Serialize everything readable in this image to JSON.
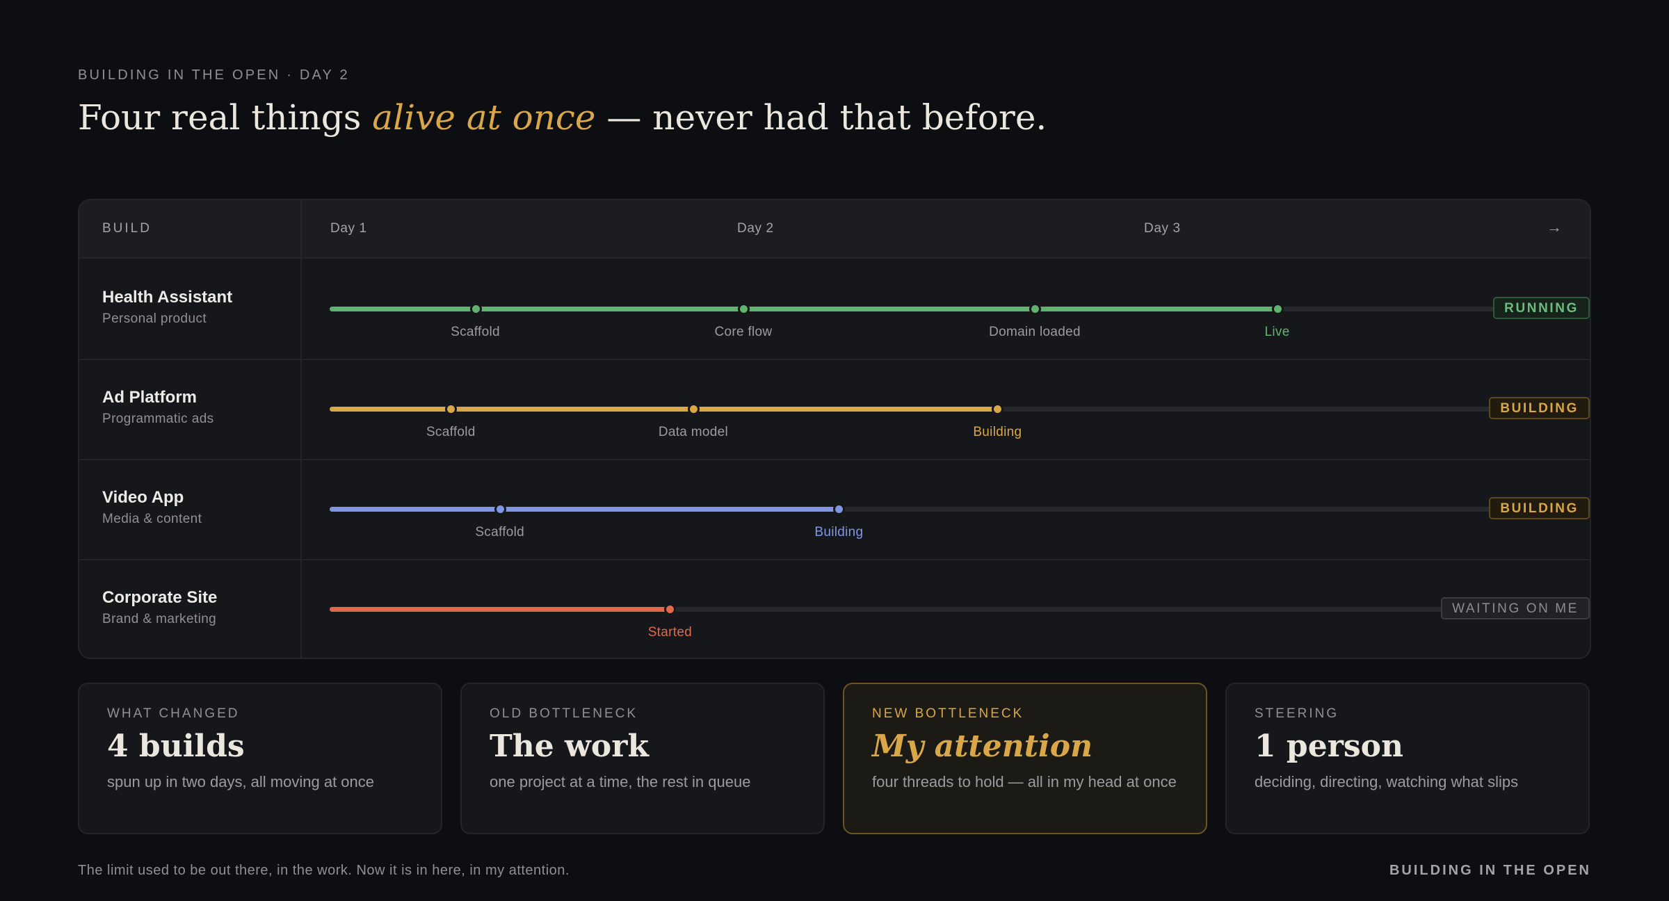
{
  "header": {
    "eyebrow": "BUILDING IN THE OPEN · DAY 2",
    "headline_pre": "Four real things ",
    "headline_em": "alive at once",
    "headline_post": " — never had that before."
  },
  "timeline": {
    "build_col_label": "BUILD",
    "days": [
      "Day 1",
      "Day 2",
      "Day 3"
    ],
    "arrow": "→",
    "rows": [
      {
        "name": "Health Assistant",
        "subtitle": "Personal product",
        "color": "#5fb36f",
        "progress": 0.81,
        "status": "RUNNING",
        "status_kind": "running",
        "milestones": [
          {
            "label": "Scaffold",
            "at": 0.125,
            "current": false
          },
          {
            "label": "Core flow",
            "at": 0.355,
            "current": false
          },
          {
            "label": "Domain loaded",
            "at": 0.605,
            "current": false
          },
          {
            "label": "Live",
            "at": 0.813,
            "current": true
          }
        ]
      },
      {
        "name": "Ad Platform",
        "subtitle": "Programmatic ads",
        "color": "#d9a748",
        "progress": 0.572,
        "status": "BUILDING",
        "status_kind": "building",
        "milestones": [
          {
            "label": "Scaffold",
            "at": 0.104,
            "current": false
          },
          {
            "label": "Data model",
            "at": 0.312,
            "current": false
          },
          {
            "label": "Building",
            "at": 0.573,
            "current": true
          }
        ]
      },
      {
        "name": "Video App",
        "subtitle": "Media & content",
        "color": "#7e96e4",
        "progress": 0.437,
        "status": "BUILDING",
        "status_kind": "building",
        "milestones": [
          {
            "label": "Scaffold",
            "at": 0.146,
            "current": false
          },
          {
            "label": "Building",
            "at": 0.437,
            "current": true
          }
        ]
      },
      {
        "name": "Corporate Site",
        "subtitle": "Brand & marketing",
        "color": "#e0694b",
        "progress": 0.291,
        "status": "WAITING ON ME",
        "status_kind": "waiting",
        "milestones": [
          {
            "label": "Started",
            "at": 0.292,
            "current": true
          }
        ]
      }
    ]
  },
  "cards": [
    {
      "eyebrow": "WHAT CHANGED",
      "value": "4 builds",
      "desc": "spun up in two days, all moving at once",
      "highlight": false
    },
    {
      "eyebrow": "OLD BOTTLENECK",
      "value": "The work",
      "desc": "one project at a time, the rest in queue",
      "highlight": false
    },
    {
      "eyebrow": "NEW BOTTLENECK",
      "value": "My attention",
      "desc": "four threads to hold — all in my head at once",
      "highlight": true
    },
    {
      "eyebrow": "STEERING",
      "value": "1 person",
      "desc": "deciding, directing, watching what slips",
      "highlight": false
    }
  ],
  "footer": {
    "left": "The limit used to be out there, in the work. Now it is in here, in my attention.",
    "right": "BUILDING IN THE OPEN"
  }
}
